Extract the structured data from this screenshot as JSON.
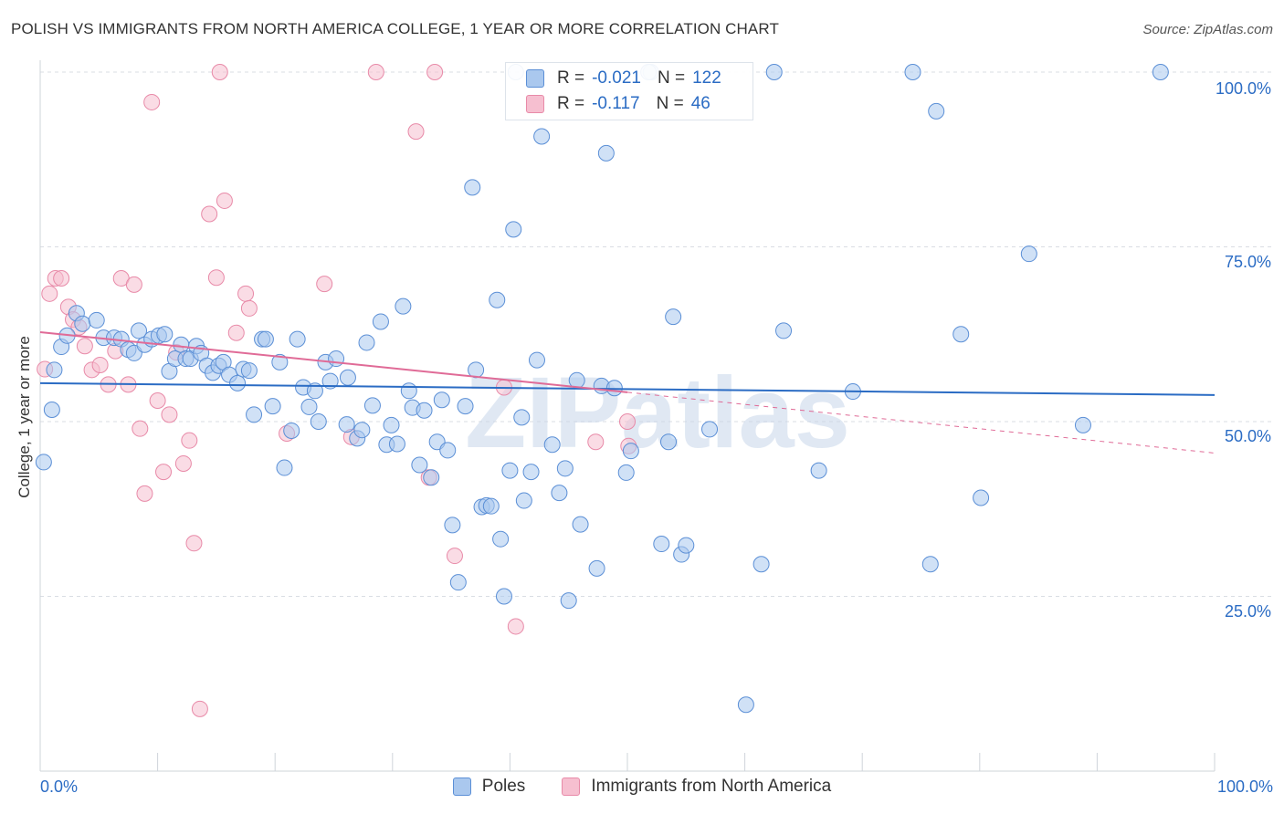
{
  "title": "POLISH VS IMMIGRANTS FROM NORTH AMERICA COLLEGE, 1 YEAR OR MORE CORRELATION CHART",
  "source": "Source: ZipAtlas.com",
  "watermark": "ZIPatlas",
  "colors": {
    "poles_fill": "#aac8ee",
    "poles_stroke": "#5b8fd6",
    "poles_line": "#2b6cc4",
    "immigrants_fill": "#f6bfd0",
    "immigrants_stroke": "#e88aa8",
    "immigrants_line": "#e06b97",
    "accent_text": "#2b6cc4",
    "grid": "#d9dde3"
  },
  "stats": {
    "poles": {
      "r_label": "R =",
      "r": "-0.021",
      "n_label": "N =",
      "n": "122"
    },
    "immigrants": {
      "r_label": "R =",
      "r": "-0.117",
      "n_label": "N =",
      "n": "46"
    }
  },
  "legend": {
    "poles": "Poles",
    "immigrants": "Immigrants from North America"
  },
  "chart_data": {
    "type": "scatter",
    "title": "POLISH VS IMMIGRANTS FROM NORTH AMERICA COLLEGE, 1 YEAR OR MORE CORRELATION CHART",
    "xlabel": "",
    "ylabel": "College, 1 year or more",
    "xlim": [
      0,
      100
    ],
    "ylim": [
      0,
      100
    ],
    "x_tick_labels": [
      "0.0%",
      "100.0%"
    ],
    "y_ticks": [
      25,
      50,
      75,
      100
    ],
    "y_tick_labels": [
      "25.0%",
      "50.0%",
      "75.0%",
      "100.0%"
    ],
    "grid": true,
    "legend_position": "bottom",
    "series": [
      {
        "name": "Poles",
        "points": [
          [
            0.3,
            44.2
          ],
          [
            1.0,
            51.7
          ],
          [
            1.2,
            57.4
          ],
          [
            1.8,
            60.7
          ],
          [
            2.3,
            62.3
          ],
          [
            3.1,
            65.5
          ],
          [
            3.6,
            64.0
          ],
          [
            4.8,
            64.5
          ],
          [
            5.4,
            62.0
          ],
          [
            6.3,
            62.0
          ],
          [
            6.9,
            61.8
          ],
          [
            7.5,
            60.3
          ],
          [
            8.0,
            59.8
          ],
          [
            8.4,
            63.0
          ],
          [
            8.9,
            61.0
          ],
          [
            9.5,
            61.8
          ],
          [
            10.1,
            62.3
          ],
          [
            10.6,
            62.5
          ],
          [
            11.0,
            57.2
          ],
          [
            11.5,
            59.0
          ],
          [
            12.0,
            61.0
          ],
          [
            12.4,
            59.0
          ],
          [
            12.8,
            59.0
          ],
          [
            13.3,
            60.8
          ],
          [
            13.7,
            59.8
          ],
          [
            14.2,
            58.0
          ],
          [
            14.7,
            57.0
          ],
          [
            15.2,
            58.0
          ],
          [
            15.6,
            58.5
          ],
          [
            16.1,
            56.7
          ],
          [
            16.8,
            55.5
          ],
          [
            17.3,
            57.5
          ],
          [
            17.8,
            57.3
          ],
          [
            18.2,
            51.0
          ],
          [
            18.9,
            61.8
          ],
          [
            19.2,
            61.8
          ],
          [
            19.8,
            52.2
          ],
          [
            20.4,
            58.5
          ],
          [
            20.8,
            43.4
          ],
          [
            21.4,
            48.7
          ],
          [
            21.9,
            61.8
          ],
          [
            22.4,
            54.9
          ],
          [
            22.9,
            52.1
          ],
          [
            23.4,
            54.4
          ],
          [
            23.7,
            50.0
          ],
          [
            24.3,
            58.5
          ],
          [
            24.7,
            55.8
          ],
          [
            25.2,
            59.0
          ],
          [
            26.1,
            49.6
          ],
          [
            26.2,
            56.3
          ],
          [
            27.0,
            47.6
          ],
          [
            27.4,
            48.8
          ],
          [
            27.8,
            61.3
          ],
          [
            28.3,
            52.3
          ],
          [
            29.0,
            64.3
          ],
          [
            29.5,
            46.7
          ],
          [
            29.9,
            49.5
          ],
          [
            30.4,
            46.8
          ],
          [
            30.9,
            66.5
          ],
          [
            31.4,
            54.4
          ],
          [
            31.7,
            52.0
          ],
          [
            32.3,
            43.8
          ],
          [
            32.7,
            51.6
          ],
          [
            33.3,
            42.0
          ],
          [
            33.8,
            47.1
          ],
          [
            34.2,
            53.1
          ],
          [
            34.7,
            45.9
          ],
          [
            35.1,
            35.2
          ],
          [
            35.6,
            27.0
          ],
          [
            36.2,
            52.2
          ],
          [
            36.8,
            83.5
          ],
          [
            37.1,
            57.4
          ],
          [
            37.6,
            37.8
          ],
          [
            38.0,
            38.0
          ],
          [
            38.4,
            37.9
          ],
          [
            38.9,
            67.4
          ],
          [
            39.2,
            33.2
          ],
          [
            39.5,
            25.0
          ],
          [
            40.0,
            43.0
          ],
          [
            40.3,
            77.5
          ],
          [
            41.0,
            50.6
          ],
          [
            41.2,
            38.7
          ],
          [
            41.8,
            42.8
          ],
          [
            42.3,
            58.8
          ],
          [
            42.7,
            90.8
          ],
          [
            43.6,
            46.7
          ],
          [
            44.2,
            39.8
          ],
          [
            44.7,
            43.3
          ],
          [
            45.0,
            24.4
          ],
          [
            45.7,
            55.9
          ],
          [
            46.0,
            35.3
          ],
          [
            47.4,
            29.0
          ],
          [
            47.8,
            55.1
          ],
          [
            48.2,
            88.4
          ],
          [
            48.9,
            54.8
          ],
          [
            49.9,
            42.7
          ],
          [
            50.3,
            45.8
          ],
          [
            52.9,
            32.5
          ],
          [
            53.5,
            47.1
          ],
          [
            53.9,
            65.0
          ],
          [
            54.6,
            31.0
          ],
          [
            55.0,
            32.3
          ],
          [
            57.0,
            48.9
          ],
          [
            60.1,
            9.5
          ],
          [
            61.4,
            29.6
          ],
          [
            62.5,
            100.0
          ],
          [
            63.3,
            63.0
          ],
          [
            66.3,
            43.0
          ],
          [
            69.2,
            54.3
          ],
          [
            74.3,
            100.0
          ],
          [
            75.8,
            29.6
          ],
          [
            76.3,
            94.4
          ],
          [
            78.4,
            62.5
          ],
          [
            80.1,
            39.1
          ],
          [
            84.2,
            74.0
          ],
          [
            88.8,
            49.5
          ],
          [
            95.4,
            100.0
          ],
          [
            52.0,
            100.0
          ],
          [
            51.8,
            100.0
          ],
          [
            40.5,
            100.0
          ]
        ]
      },
      {
        "name": "Immigrants from North America",
        "points": [
          [
            0.4,
            57.5
          ],
          [
            0.8,
            68.3
          ],
          [
            1.3,
            70.5
          ],
          [
            1.8,
            70.5
          ],
          [
            2.4,
            66.4
          ],
          [
            2.8,
            64.6
          ],
          [
            3.3,
            63.5
          ],
          [
            3.8,
            60.8
          ],
          [
            4.4,
            57.4
          ],
          [
            5.1,
            58.1
          ],
          [
            5.8,
            55.3
          ],
          [
            6.4,
            60.1
          ],
          [
            6.9,
            70.5
          ],
          [
            7.5,
            55.3
          ],
          [
            8.0,
            69.6
          ],
          [
            8.5,
            49.0
          ],
          [
            8.9,
            39.7
          ],
          [
            9.5,
            95.7
          ],
          [
            10.0,
            53.0
          ],
          [
            10.5,
            42.8
          ],
          [
            11.0,
            51.0
          ],
          [
            11.6,
            59.9
          ],
          [
            12.2,
            44.0
          ],
          [
            12.7,
            47.3
          ],
          [
            13.1,
            32.6
          ],
          [
            13.6,
            8.9
          ],
          [
            14.4,
            79.7
          ],
          [
            15.0,
            70.6
          ],
          [
            15.3,
            100.0
          ],
          [
            15.7,
            81.6
          ],
          [
            16.7,
            62.7
          ],
          [
            17.5,
            68.3
          ],
          [
            17.8,
            66.2
          ],
          [
            21.0,
            48.3
          ],
          [
            24.2,
            69.7
          ],
          [
            26.5,
            47.8
          ],
          [
            28.6,
            100.0
          ],
          [
            32.0,
            91.5
          ],
          [
            33.1,
            42.0
          ],
          [
            33.6,
            100.0
          ],
          [
            35.3,
            30.8
          ],
          [
            39.5,
            54.9
          ],
          [
            40.5,
            20.7
          ],
          [
            47.3,
            47.1
          ],
          [
            50.0,
            50.0
          ],
          [
            50.1,
            46.5
          ]
        ]
      }
    ],
    "trend_lines": [
      {
        "series": "Poles",
        "x": [
          0,
          100
        ],
        "y": [
          55.5,
          53.8
        ]
      },
      {
        "series": "Immigrants from North America",
        "x": [
          0,
          50
        ],
        "y": [
          62.8,
          54.2
        ],
        "dashed_extension_to": [
          100,
          45.5
        ]
      }
    ]
  }
}
